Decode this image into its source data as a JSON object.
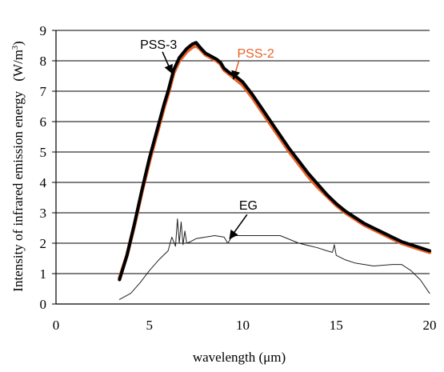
{
  "chart_data": {
    "type": "line",
    "xlabel": "wavelength (μm)",
    "ylabel": "Intensity of infrared emission energy",
    "ylabel_unit": "(W/m",
    "ylabel_unit_sup": "3",
    "ylabel_unit_close": ")",
    "xlim": [
      0,
      20
    ],
    "ylim": [
      0,
      9
    ],
    "x_ticks": [
      0,
      5,
      10,
      15,
      20
    ],
    "y_ticks": [
      0,
      1,
      2,
      3,
      4,
      5,
      6,
      7,
      8,
      9
    ],
    "x_tick_labels": [
      "0",
      "5",
      "10",
      "15",
      "20"
    ],
    "y_tick_labels": [
      "0",
      "1",
      "2",
      "3",
      "4",
      "5",
      "6",
      "7",
      "8",
      "9"
    ],
    "grid": "horizontal",
    "series": [
      {
        "name": "PSS-2",
        "color": "#e8622a",
        "x": [
          3.4,
          3.8,
          4.2,
          4.6,
          5.0,
          5.4,
          5.8,
          6.0,
          6.3,
          6.6,
          7.0,
          7.3,
          7.5,
          7.7,
          8.0,
          8.3,
          8.6,
          8.8,
          9.0,
          9.3,
          9.6,
          10.0,
          10.5,
          11.0,
          11.5,
          12.0,
          12.5,
          13.0,
          13.5,
          14.0,
          14.5,
          15.0,
          15.5,
          16.0,
          16.5,
          17.0,
          17.5,
          18.0,
          18.5,
          19.0,
          19.5,
          20.0
        ],
        "y": [
          0.85,
          1.6,
          2.6,
          3.7,
          4.7,
          5.6,
          6.5,
          6.9,
          7.6,
          8.0,
          8.3,
          8.45,
          8.5,
          8.4,
          8.2,
          8.1,
          8.0,
          7.9,
          7.7,
          7.55,
          7.4,
          7.2,
          6.8,
          6.35,
          5.9,
          5.45,
          5.0,
          4.6,
          4.2,
          3.85,
          3.55,
          3.25,
          3.0,
          2.8,
          2.6,
          2.45,
          2.3,
          2.15,
          2.0,
          1.9,
          1.8,
          1.7
        ]
      },
      {
        "name": "PSS-3",
        "color": "#000000",
        "x": [
          3.4,
          3.8,
          4.2,
          4.6,
          5.0,
          5.4,
          5.8,
          6.0,
          6.3,
          6.6,
          7.0,
          7.3,
          7.5,
          7.7,
          8.0,
          8.3,
          8.6,
          8.8,
          9.0,
          9.3,
          9.6,
          10.0,
          10.5,
          11.0,
          11.5,
          12.0,
          12.5,
          13.0,
          13.5,
          14.0,
          14.5,
          15.0,
          15.5,
          16.0,
          16.5,
          17.0,
          17.5,
          18.0,
          18.5,
          19.0,
          19.5,
          20.0
        ],
        "y": [
          0.8,
          1.6,
          2.65,
          3.75,
          4.8,
          5.7,
          6.6,
          7.0,
          7.7,
          8.1,
          8.4,
          8.55,
          8.6,
          8.45,
          8.25,
          8.15,
          8.05,
          7.95,
          7.75,
          7.6,
          7.5,
          7.3,
          6.9,
          6.45,
          6.0,
          5.55,
          5.1,
          4.7,
          4.3,
          3.95,
          3.6,
          3.3,
          3.05,
          2.85,
          2.65,
          2.5,
          2.35,
          2.2,
          2.05,
          1.95,
          1.85,
          1.75
        ]
      },
      {
        "name": "EG",
        "color": "#222222",
        "x": [
          3.4,
          4.0,
          4.5,
          5.0,
          5.5,
          6.0,
          6.2,
          6.4,
          6.5,
          6.6,
          6.7,
          6.8,
          6.9,
          7.0,
          7.2,
          7.5,
          8.0,
          8.5,
          9.0,
          9.2,
          9.4,
          9.6,
          10.0,
          11.0,
          12.0,
          13.0,
          14.0,
          14.5,
          14.8,
          14.9,
          15.0,
          15.5,
          16.0,
          17.0,
          18.0,
          18.5,
          19.0,
          19.5,
          20.0
        ],
        "y": [
          0.15,
          0.35,
          0.7,
          1.1,
          1.45,
          1.75,
          2.2,
          1.9,
          2.8,
          2.0,
          2.7,
          1.95,
          2.4,
          2.0,
          2.05,
          2.15,
          2.2,
          2.25,
          2.2,
          2.0,
          2.2,
          2.25,
          2.25,
          2.25,
          2.25,
          2.0,
          1.85,
          1.75,
          1.7,
          1.95,
          1.6,
          1.45,
          1.35,
          1.25,
          1.3,
          1.3,
          1.1,
          0.8,
          0.35
        ]
      }
    ],
    "annotations": [
      {
        "text": "PSS-3",
        "color": "#000000",
        "label_x": 4.5,
        "label_y": 8.4,
        "arrow_to_x": 6.2,
        "arrow_to_y": 7.6
      },
      {
        "text": "PSS-2",
        "color": "#e8622a",
        "label_x": 9.7,
        "label_y": 8.1,
        "arrow_to_x": 9.5,
        "arrow_to_y": 7.4
      },
      {
        "text": "EG",
        "color": "#000000",
        "label_x": 9.8,
        "label_y": 3.1,
        "arrow_to_x": 9.3,
        "arrow_to_y": 2.15
      }
    ]
  }
}
